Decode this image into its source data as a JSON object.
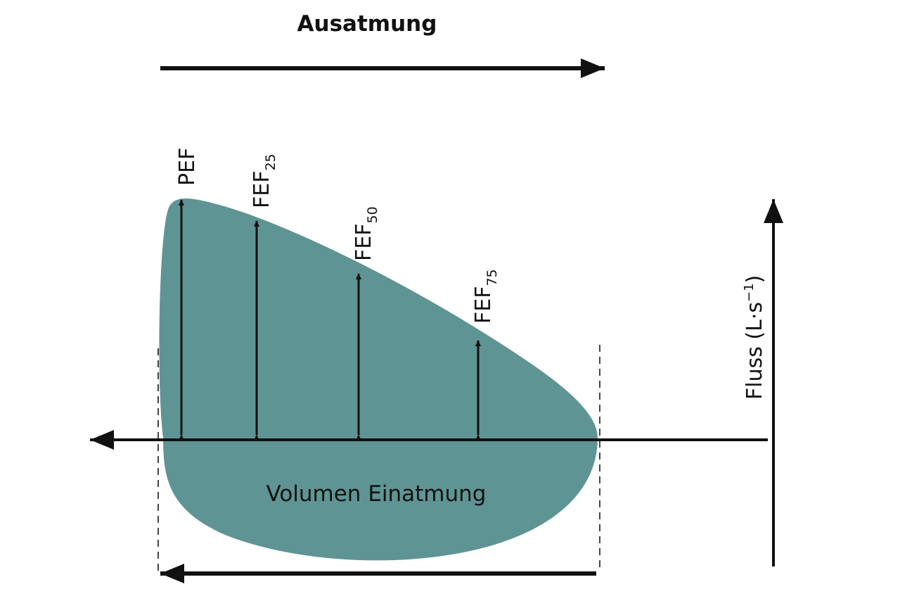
{
  "title": "Ausatmung",
  "markers": [
    {
      "label": "PEF"
    },
    {
      "label": "FEF",
      "subscript": "25"
    },
    {
      "label": "FEF",
      "subscript": "50"
    },
    {
      "label": "FEF",
      "subscript": "75"
    }
  ],
  "y_axis": {
    "label": "Fluss (L·s",
    "superscript": "−1",
    "closing": ")"
  },
  "area_label": "Volumen Einatmung"
}
